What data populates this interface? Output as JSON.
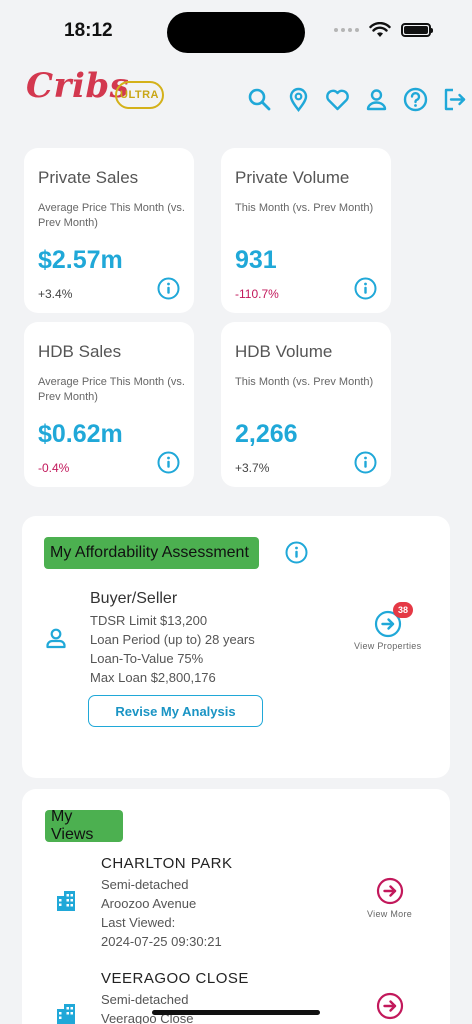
{
  "status_bar": {
    "time": "18:12"
  },
  "header": {
    "logo": "Cribs",
    "badge": "ULTRA",
    "icons": [
      "search-icon",
      "location-pin-icon",
      "heart-icon",
      "user-icon",
      "help-icon",
      "logout-icon"
    ]
  },
  "stats": [
    {
      "title": "Private Sales",
      "subtitle": "Average Price This Month (vs. Prev Month)",
      "value": "$2.57m",
      "change": "+3.4%"
    },
    {
      "title": "Private Volume",
      "subtitle": "This Month (vs. Prev Month)",
      "value": "931",
      "change": "-110.7%"
    },
    {
      "title": "HDB Sales",
      "subtitle": "Average Price This Month (vs. Prev Month)",
      "value": "$0.62m",
      "change": "-0.4%"
    },
    {
      "title": "HDB Volume",
      "subtitle": "This Month (vs. Prev Month)",
      "value": "2,266",
      "change": "+3.7%"
    }
  ],
  "affordability": {
    "title": "My Affordability Assessment",
    "role": "Buyer/Seller",
    "tdsr": "TDSR Limit $13,200",
    "loan_period": "Loan Period (up to) 28 years",
    "ltv": "Loan-To-Value 75%",
    "max_loan": "Max Loan $2,800,176",
    "badge_count": "38",
    "view_properties": "View Properties",
    "revise_button": "Revise My Analysis"
  },
  "my_views": {
    "title": "My Views",
    "items": [
      {
        "name": "CHARLTON PARK",
        "type": "Semi-detached",
        "street": "Aroozoo Avenue",
        "last_viewed_label": "Last Viewed:",
        "last_viewed": "2024-07-25 09:30:21",
        "action": "View More"
      },
      {
        "name": "VEERAGOO CLOSE",
        "type": "Semi-detached",
        "street": "Veeragoo Close"
      }
    ]
  },
  "colors": {
    "accent": "#20a8d8",
    "brand": "#d3384f",
    "negative": "#c2185b",
    "chip": "#4cb050",
    "badge": "#e53945"
  }
}
